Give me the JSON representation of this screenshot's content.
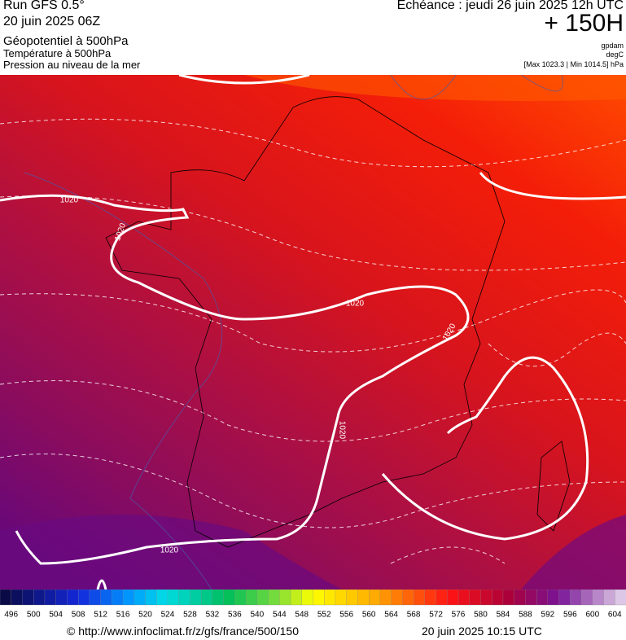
{
  "header": {
    "run": "Run GFS 0.5°",
    "date": "20 juin 2025 06Z",
    "line1": "Géopotentiel à 500hPa",
    "line2": "Température à 500hPa",
    "line3": "Pression au niveau de la mer",
    "echeance": "Echéance : jeudi 26 juin 2025 12h UTC",
    "offset": "+ 150H",
    "unit1": "gpdam",
    "unit2": "degC",
    "unit3": "[Max 1023.3 | Min 1014.5] hPa"
  },
  "map": {
    "isobar_labels": [
      "1020",
      "1020",
      "1020",
      "1020",
      "1020",
      "1020"
    ]
  },
  "colorbar": {
    "labels": [
      496,
      500,
      504,
      508,
      512,
      516,
      520,
      524,
      528,
      532,
      536,
      540,
      544,
      548,
      552,
      556,
      560,
      564,
      568,
      572,
      576,
      580,
      584,
      588,
      592,
      596,
      600,
      604
    ]
  },
  "footer": {
    "url": "© http://www.infoclimat.fr/z/gfs/france/500/150",
    "timestamp": "20 juin 2025 10:15 UTC"
  }
}
